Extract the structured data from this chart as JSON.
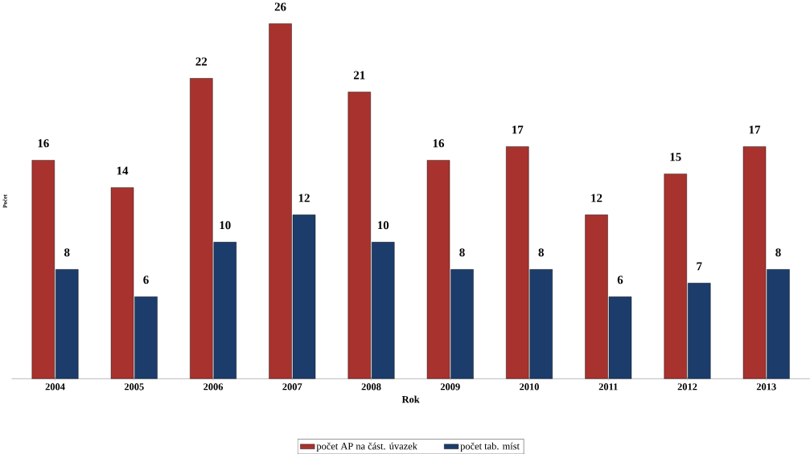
{
  "chart_data": {
    "type": "bar",
    "xlabel": "Rok",
    "ylabel": "Počet",
    "categories": [
      "2004",
      "2005",
      "2006",
      "2007",
      "2008",
      "2009",
      "2010",
      "2011",
      "2012",
      "2013"
    ],
    "series": [
      {
        "name": "počet AP na část. úvazek",
        "color": "#a8322e",
        "values": [
          16,
          14,
          22,
          26,
          21,
          16,
          17,
          12,
          15,
          17
        ]
      },
      {
        "name": "počet tab. míst",
        "color": "#1c3d6b",
        "values": [
          8,
          6,
          10,
          12,
          10,
          8,
          8,
          6,
          7,
          8
        ]
      }
    ],
    "data_labels": true,
    "legend": "bottom",
    "tick_labels": "x"
  }
}
